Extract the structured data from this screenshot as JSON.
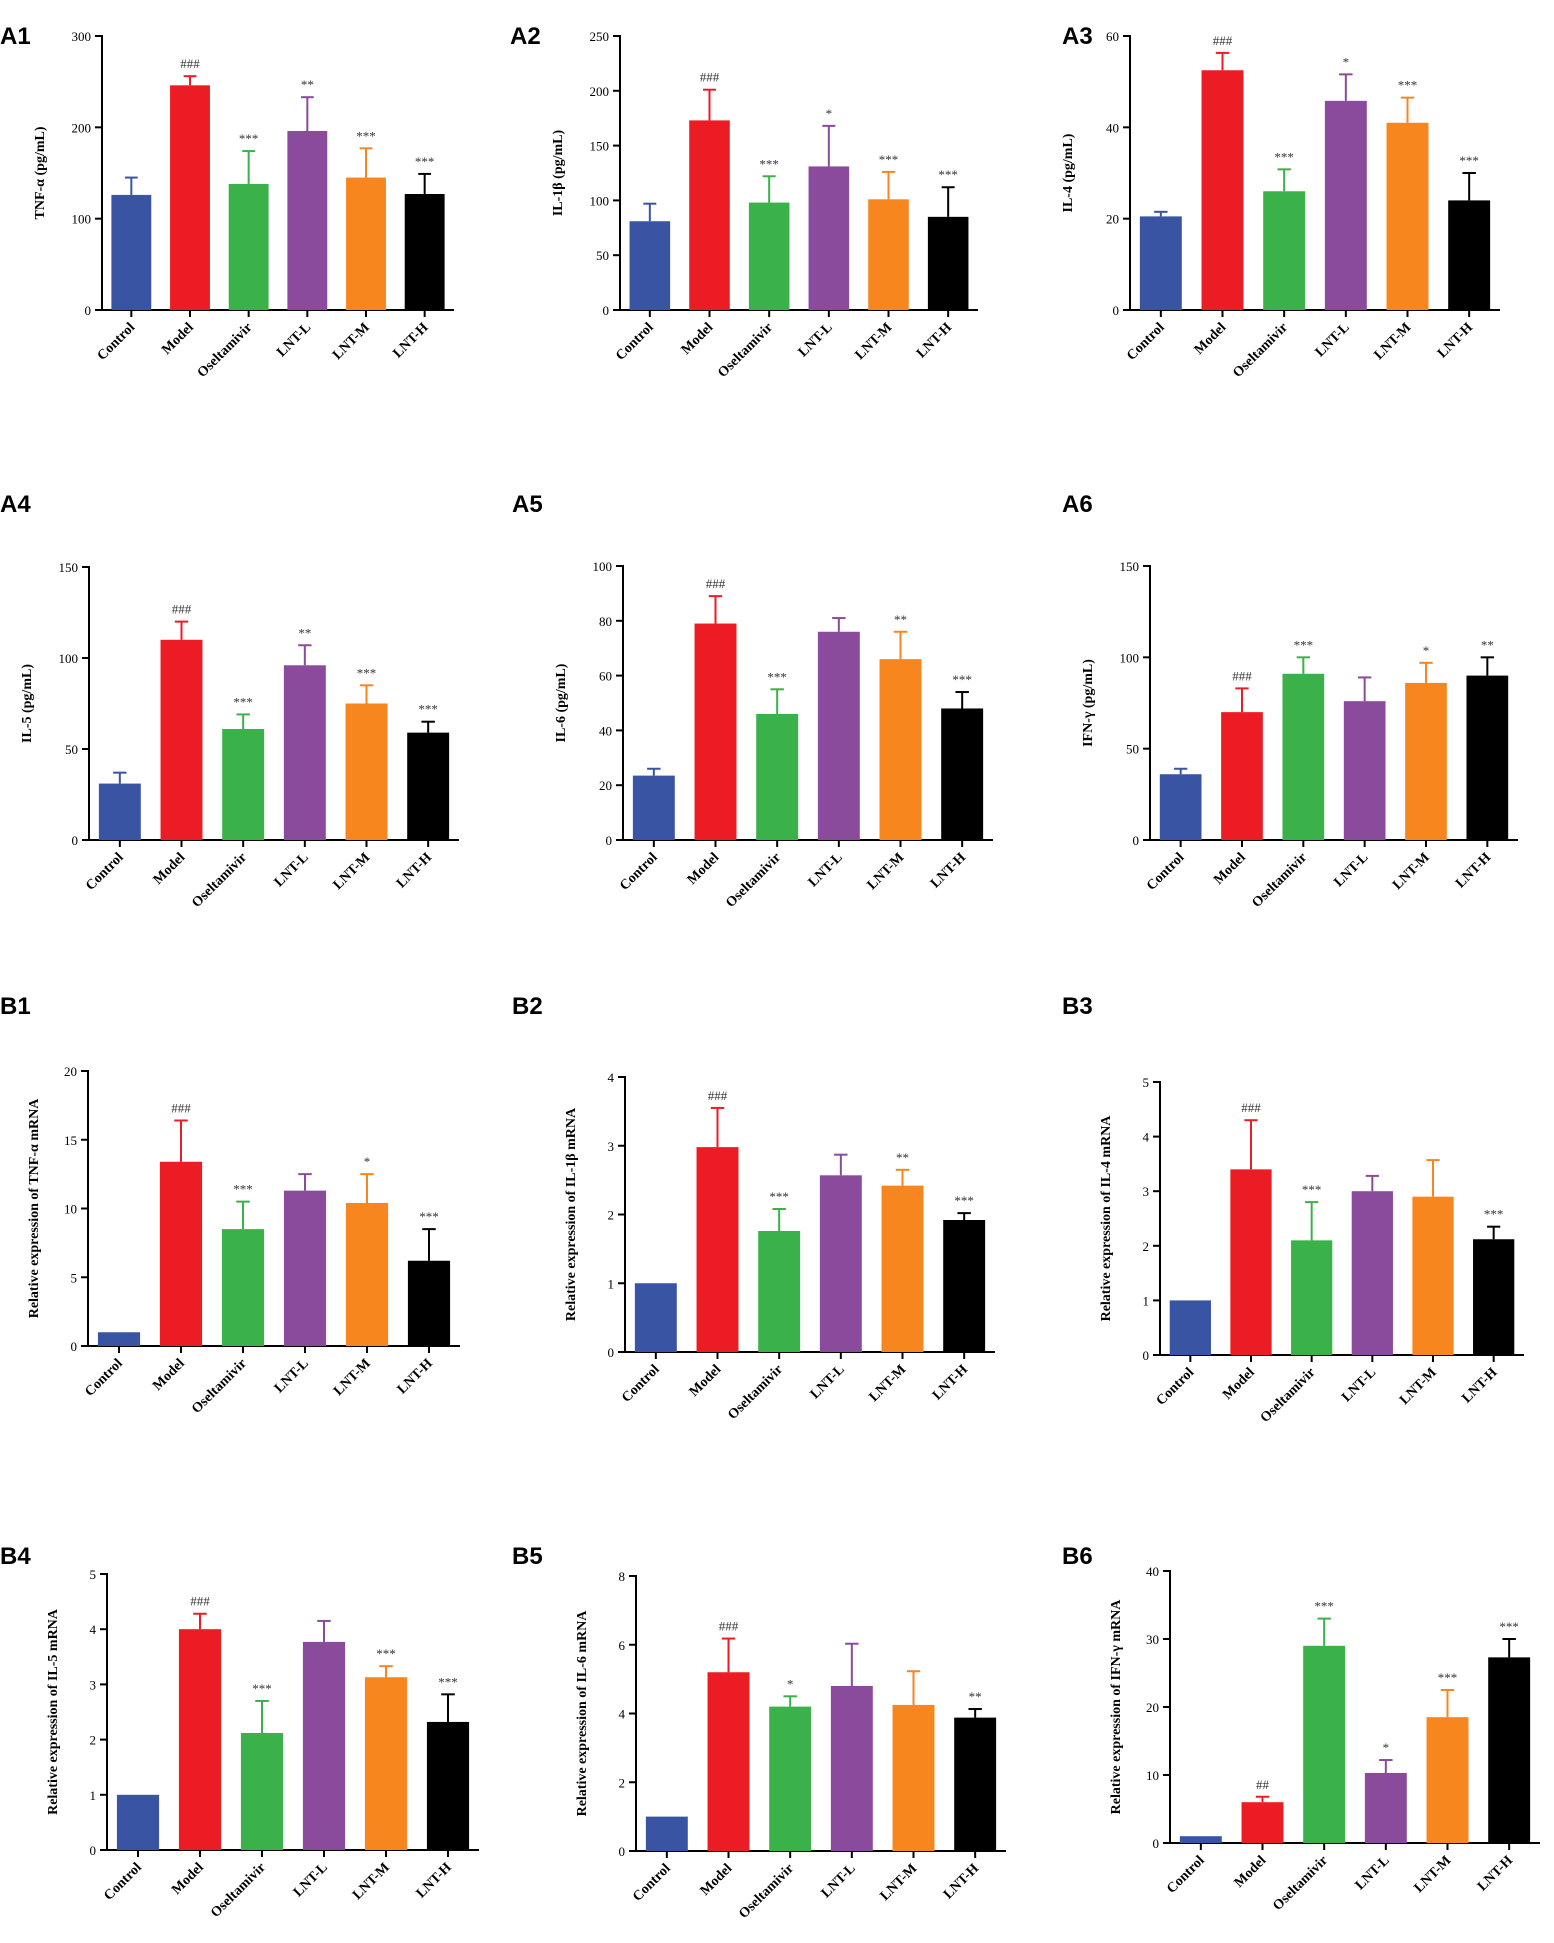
{
  "colors": [
    "#3a54a4",
    "#ec1c24",
    "#3bb14a",
    "#8b4b9c",
    "#f7861f",
    "#000000"
  ],
  "chart_data": [
    {
      "panel": "A1",
      "type": "bar",
      "ylabel": "TNF-α (pg/mL)",
      "ylim": [
        0,
        300
      ],
      "yticks": [
        "0",
        "100",
        "200",
        "300"
      ],
      "categories": [
        "Control",
        "Model",
        "Oseltamivir",
        "LNT-L",
        "LNT-M",
        "LNT-H"
      ],
      "values": [
        126,
        246,
        138,
        196,
        145,
        127
      ],
      "errors": [
        19,
        10,
        36,
        37,
        32,
        22
      ],
      "annotations": [
        "",
        "###",
        "***",
        "**",
        "***",
        "***"
      ]
    },
    {
      "panel": "A2",
      "type": "bar",
      "ylabel": "IL-1β (pg/mL)",
      "ylim": [
        0,
        250
      ],
      "yticks": [
        "0",
        "50",
        "100",
        "150",
        "200",
        "250"
      ],
      "categories": [
        "Control",
        "Model",
        "Oseltamivir",
        "LNT-L",
        "LNT-M",
        "LNT-H"
      ],
      "values": [
        81,
        173,
        98,
        131,
        101,
        85
      ],
      "errors": [
        16,
        28,
        24,
        37,
        25,
        27
      ],
      "annotations": [
        "",
        "###",
        "***",
        "*",
        "***",
        "***"
      ]
    },
    {
      "panel": "A3",
      "type": "bar",
      "ylabel": "IL-4 (pg/mL)",
      "ylim": [
        0,
        60
      ],
      "yticks": [
        "0",
        "20",
        "40",
        "60"
      ],
      "categories": [
        "Control",
        "Model",
        "Oseltamivir",
        "LNT-L",
        "LNT-M",
        "LNT-H"
      ],
      "values": [
        20.5,
        52.5,
        26,
        45.8,
        41,
        24
      ],
      "errors": [
        1,
        3.8,
        4.8,
        5.8,
        5.5,
        6
      ],
      "annotations": [
        "",
        "###",
        "***",
        "*",
        "***",
        "***"
      ]
    },
    {
      "panel": "A4",
      "type": "bar",
      "ylabel": "IL-5 (pg/mL)",
      "ylim": [
        0,
        150
      ],
      "yticks": [
        "0",
        "50",
        "100",
        "150"
      ],
      "categories": [
        "Control",
        "Model",
        "Oseltamivir",
        "LNT-L",
        "LNT-M",
        "LNT-H"
      ],
      "values": [
        31,
        110,
        61,
        96,
        75,
        59
      ],
      "errors": [
        6,
        10,
        8,
        11,
        10,
        6
      ],
      "annotations": [
        "",
        "###",
        "***",
        "**",
        "***",
        "***"
      ]
    },
    {
      "panel": "A5",
      "type": "bar",
      "ylabel": "IL-6 (pg/mL)",
      "ylim": [
        0,
        100
      ],
      "yticks": [
        "0",
        "20",
        "40",
        "60",
        "80",
        "100"
      ],
      "categories": [
        "Control",
        "Model",
        "Oseltamivir",
        "LNT-L",
        "LNT-M",
        "LNT-H"
      ],
      "values": [
        23.5,
        79,
        46,
        76,
        66,
        48
      ],
      "errors": [
        2.5,
        10,
        9,
        5,
        10,
        6
      ],
      "annotations": [
        "",
        "###",
        "***",
        "",
        "**",
        "***"
      ]
    },
    {
      "panel": "A6",
      "type": "bar",
      "ylabel": "IFN-γ (pg/mL)",
      "ylim": [
        0,
        150
      ],
      "yticks": [
        "0",
        "50",
        "100",
        "150"
      ],
      "categories": [
        "Control",
        "Model",
        "Oseltamivir",
        "LNT-L",
        "LNT-M",
        "LNT-H"
      ],
      "values": [
        36,
        70,
        91,
        76,
        86,
        90
      ],
      "errors": [
        3,
        13,
        9,
        13,
        11,
        10
      ],
      "annotations": [
        "",
        "###",
        "***",
        "",
        "*",
        "**"
      ]
    },
    {
      "panel": "B1",
      "type": "bar",
      "ylabel": "Relative expression of TNF-α mRNA",
      "ylim": [
        0,
        20
      ],
      "yticks": [
        "0",
        "5",
        "10",
        "15",
        "20"
      ],
      "categories": [
        "Control",
        "Model",
        "Oseltamivir",
        "LNT-L",
        "LNT-M",
        "LNT-H"
      ],
      "values": [
        1,
        13.4,
        8.5,
        11.3,
        10.4,
        6.2
      ],
      "errors": [
        0,
        3,
        2,
        1.2,
        2.1,
        2.3
      ],
      "annotations": [
        "",
        "###",
        "***",
        "",
        "*",
        "***"
      ]
    },
    {
      "panel": "B2",
      "type": "bar",
      "ylabel": "Relative expression of IL-1β mRNA",
      "ylim": [
        0,
        4
      ],
      "yticks": [
        "0",
        "1",
        "2",
        "3",
        "4"
      ],
      "categories": [
        "Control",
        "Model",
        "Oseltamivir",
        "LNT-L",
        "LNT-M",
        "LNT-H"
      ],
      "values": [
        1,
        2.98,
        1.76,
        2.57,
        2.42,
        1.92
      ],
      "errors": [
        0,
        0.57,
        0.32,
        0.3,
        0.23,
        0.1
      ],
      "annotations": [
        "",
        "###",
        "***",
        "",
        "**",
        "***"
      ]
    },
    {
      "panel": "B3",
      "type": "bar",
      "ylabel": "Relative expression of IL-4 mRNA",
      "ylim": [
        0,
        5
      ],
      "yticks": [
        "0",
        "1",
        "2",
        "3",
        "4",
        "5"
      ],
      "categories": [
        "Control",
        "Model",
        "Oseltamivir",
        "LNT-L",
        "LNT-M",
        "LNT-H"
      ],
      "values": [
        1,
        3.4,
        2.1,
        3,
        2.9,
        2.12
      ],
      "errors": [
        0,
        0.9,
        0.7,
        0.28,
        0.67,
        0.23
      ],
      "annotations": [
        "",
        "###",
        "***",
        "",
        "",
        "***"
      ]
    },
    {
      "panel": "B4",
      "type": "bar",
      "ylabel": "Relative expression of IL-5 mRNA",
      "ylim": [
        0,
        5
      ],
      "yticks": [
        "0",
        "1",
        "2",
        "3",
        "4",
        "5"
      ],
      "categories": [
        "Control",
        "Model",
        "Oseltamivir",
        "LNT-L",
        "LNT-M",
        "LNT-H"
      ],
      "values": [
        1,
        4,
        2.12,
        3.77,
        3.13,
        2.32
      ],
      "errors": [
        0,
        0.28,
        0.58,
        0.38,
        0.2,
        0.5
      ],
      "annotations": [
        "",
        "###",
        "***",
        "",
        "***",
        "***"
      ]
    },
    {
      "panel": "B5",
      "type": "bar",
      "ylabel": "Relative expression of IL-6 mRNA",
      "ylim": [
        0,
        8
      ],
      "yticks": [
        "0",
        "2",
        "4",
        "6",
        "8"
      ],
      "categories": [
        "Control",
        "Model",
        "Oseltamivir",
        "LNT-L",
        "LNT-M",
        "LNT-H"
      ],
      "values": [
        1,
        5.2,
        4.2,
        4.8,
        4.25,
        3.88
      ],
      "errors": [
        0,
        0.98,
        0.3,
        1.23,
        0.98,
        0.25
      ],
      "annotations": [
        "",
        "###",
        "*",
        "",
        "",
        "**"
      ]
    },
    {
      "panel": "B6",
      "type": "bar",
      "ylabel": "Relative expression of IFN-γ mRNA",
      "ylim": [
        0,
        40
      ],
      "yticks": [
        "0",
        "10",
        "20",
        "30",
        "40"
      ],
      "categories": [
        "Control",
        "Model",
        "Oseltamivir",
        "LNT-L",
        "LNT-M",
        "LNT-H"
      ],
      "values": [
        1,
        6,
        29,
        10.3,
        18.5,
        27.3
      ],
      "errors": [
        0,
        0.8,
        4,
        1.9,
        4,
        2.7
      ],
      "annotations": [
        "",
        "##",
        "***",
        "*",
        "***",
        "***"
      ]
    }
  ]
}
